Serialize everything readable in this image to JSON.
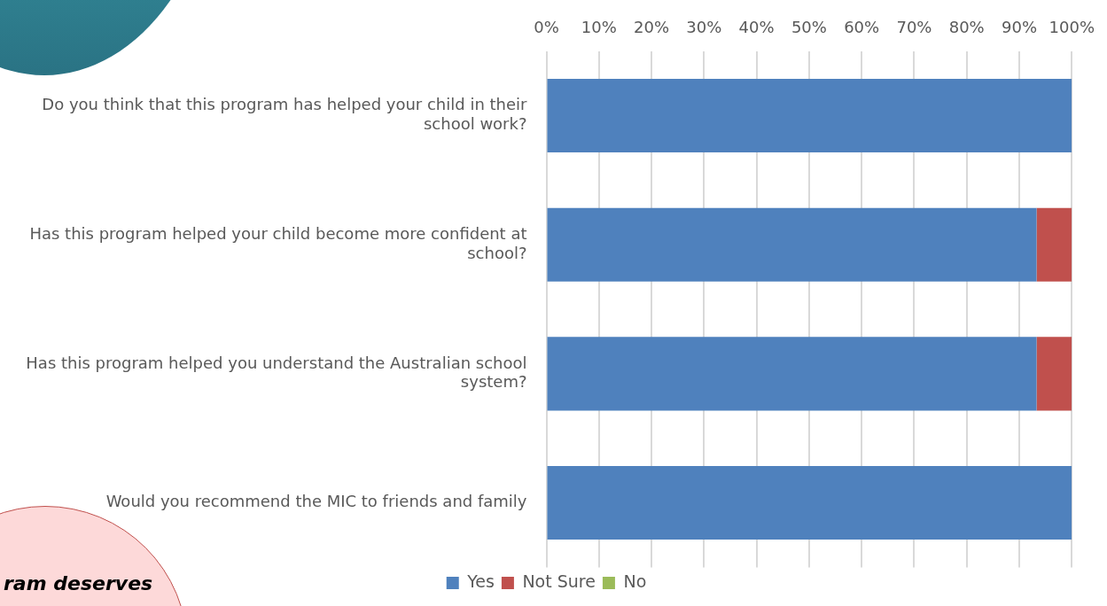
{
  "chart_data": {
    "type": "bar",
    "orientation": "horizontal",
    "stacked": true,
    "categories": [
      "Do you think that this program has helped your child in their school work?",
      "Has this program helped your child become more confident at school?",
      "Has this program helped you understand the Australian school system?",
      "Would you recommend the MIC to friends and family"
    ],
    "series": [
      {
        "name": "Yes",
        "color": "#4f81bd",
        "values": [
          100,
          93.3,
          93.3,
          100
        ]
      },
      {
        "name": "Not Sure",
        "color": "#c0504d",
        "values": [
          0,
          6.7,
          6.7,
          0
        ]
      },
      {
        "name": "No",
        "color": "#9bbb59",
        "values": [
          0,
          0,
          0,
          0
        ]
      }
    ],
    "xlim": [
      0,
      100
    ],
    "xticks": [
      {
        "value": 0,
        "label": "0%"
      },
      {
        "value": 10,
        "label": "10%"
      },
      {
        "value": 20,
        "label": "20%"
      },
      {
        "value": 30,
        "label": "30%"
      },
      {
        "value": 40,
        "label": "40%"
      },
      {
        "value": 50,
        "label": "50%"
      },
      {
        "value": 60,
        "label": "60%"
      },
      {
        "value": 70,
        "label": "70%"
      },
      {
        "value": 80,
        "label": "80%"
      },
      {
        "value": 90,
        "label": "90%"
      },
      {
        "value": 100,
        "label": "100%"
      }
    ],
    "grid": "x",
    "legend": "bottom",
    "annotations": [
      "ram deserves"
    ]
  }
}
